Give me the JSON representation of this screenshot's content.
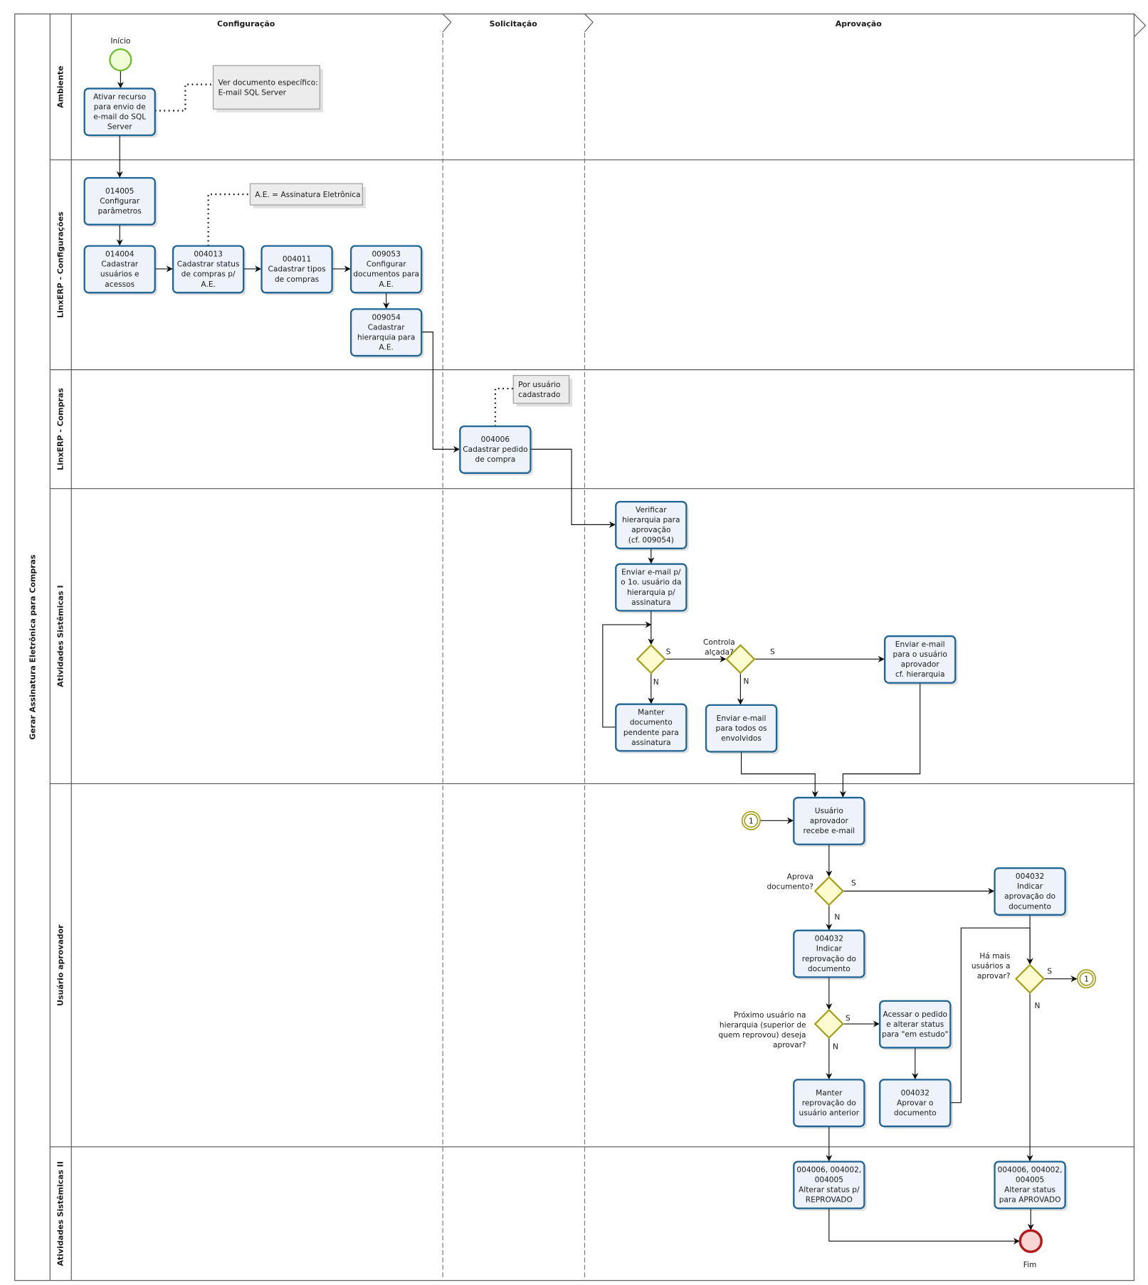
{
  "pool": {
    "title": "Gerar Assinatura Eletrônica para Compras"
  },
  "phases": [
    {
      "id": "config",
      "label": "Configuração"
    },
    {
      "id": "solic",
      "label": "Solicitação"
    },
    {
      "id": "aprov",
      "label": "Aprovação"
    }
  ],
  "lanes": [
    {
      "id": "ambiente",
      "label": "Ambiente"
    },
    {
      "id": "linx-config",
      "label": "LinxERP - Configurações"
    },
    {
      "id": "linx-compras",
      "label": "LinxERP - Compras"
    },
    {
      "id": "sist1",
      "label": "Atividades Sistêmicas I"
    },
    {
      "id": "usuario",
      "label": "Usuário aprovador"
    },
    {
      "id": "sist2",
      "label": "Atividades Sistêmicas II"
    }
  ],
  "events": [
    {
      "id": "start",
      "type": "start",
      "label": "Início",
      "color": "#6cbf2a"
    },
    {
      "id": "end",
      "type": "end",
      "label": "Fim",
      "color": "#b31b1b"
    },
    {
      "id": "link-in",
      "type": "link",
      "label": "1",
      "color": "#a7a21e"
    },
    {
      "id": "link-out",
      "type": "link",
      "label": "1",
      "color": "#a7a21e"
    }
  ],
  "tasks": [
    {
      "id": "t1",
      "lines": [
        "Ativar recurso",
        "para envio de",
        "e-mail do SQL",
        "Server"
      ]
    },
    {
      "id": "t2",
      "lines": [
        "014005",
        "Configurar",
        "parâmetros"
      ]
    },
    {
      "id": "t3",
      "lines": [
        "014004",
        "Cadastrar",
        "usuários e",
        "acessos"
      ]
    },
    {
      "id": "t4",
      "lines": [
        "004013",
        "Cadastrar status",
        "de compras p/",
        "A.E."
      ]
    },
    {
      "id": "t5",
      "lines": [
        "004011",
        "Cadastrar tipos",
        "de compras"
      ]
    },
    {
      "id": "t6",
      "lines": [
        "009053",
        "Configurar",
        "documentos para",
        "A.E."
      ]
    },
    {
      "id": "t7",
      "lines": [
        "009054",
        "Cadastrar",
        "hierarquia para",
        "A.E."
      ]
    },
    {
      "id": "t8",
      "lines": [
        "004006",
        "Cadastrar pedido",
        "de compra"
      ]
    },
    {
      "id": "t9",
      "lines": [
        "Verificar",
        "hierarquia para",
        "aprovação",
        "(cf. 009054)"
      ]
    },
    {
      "id": "t10",
      "lines": [
        "Enviar e-mail p/",
        "o 1o. usuário da",
        "hierarquia  p/",
        "assinatura"
      ]
    },
    {
      "id": "t11",
      "lines": [
        "Manter",
        "documento",
        "pendente para",
        "assinatura"
      ]
    },
    {
      "id": "t12",
      "lines": [
        "Enviar e-mail",
        "para todos os",
        "envolvidos"
      ]
    },
    {
      "id": "t13",
      "lines": [
        "Enviar e-mail",
        "para o usuário",
        "aprovador",
        "cf. hierarquia"
      ]
    },
    {
      "id": "t14",
      "lines": [
        "Usuário",
        "aprovador",
        "recebe e-mail"
      ]
    },
    {
      "id": "t15",
      "lines": [
        "004032",
        "Indicar",
        "aprovação do",
        "documento"
      ]
    },
    {
      "id": "t16",
      "lines": [
        "004032",
        "Indicar",
        "reprovação do",
        "documento"
      ]
    },
    {
      "id": "t17",
      "lines": [
        "Acessar o pedido",
        "e alterar  status",
        "para \"em estudo\""
      ]
    },
    {
      "id": "t18",
      "lines": [
        "Manter",
        "reprovação do",
        "usuário anterior"
      ]
    },
    {
      "id": "t19",
      "lines": [
        "004032",
        "Aprovar o",
        "documento"
      ]
    },
    {
      "id": "t20",
      "lines": [
        "004006, 004002,",
        "004005",
        "Alterar status p/",
        "REPROVADO"
      ]
    },
    {
      "id": "t21",
      "lines": [
        "004006, 004002,",
        "004005",
        "Alterar status",
        "para APROVADO"
      ]
    }
  ],
  "gateways": [
    {
      "id": "g1",
      "lines": []
    },
    {
      "id": "g2",
      "lines": [
        "Controla",
        "alçada?"
      ]
    },
    {
      "id": "g3",
      "lines": [
        "Aprova",
        "documento?"
      ]
    },
    {
      "id": "g4",
      "lines": [
        "Próximo usuário na",
        "hierarquia (superior de",
        "quem reprovou) deseja",
        "aprovar?"
      ]
    },
    {
      "id": "g5",
      "lines": [
        "Há mais",
        "usuários a",
        "aprovar?"
      ]
    }
  ],
  "annotations": [
    {
      "id": "a1",
      "lines": [
        "Ver documento específico:",
        " E-mail SQL Server"
      ]
    },
    {
      "id": "a2",
      "lines": [
        "A.E. =  Assinatura Eletrônica"
      ]
    },
    {
      "id": "a3",
      "lines": [
        "Por usuário",
        "cadastrado"
      ]
    }
  ],
  "flow_labels": {
    "yes": "S",
    "no": "N"
  }
}
